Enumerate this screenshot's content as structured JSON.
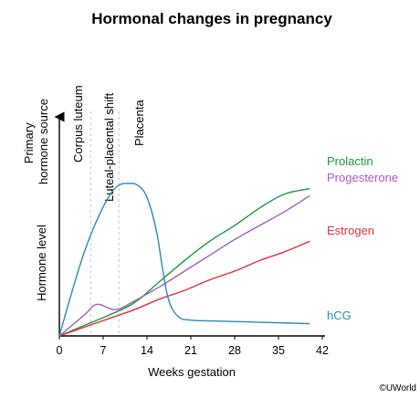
{
  "chart_data": {
    "type": "line",
    "title": "Hormonal changes in pregnancy",
    "xlabel": "Weeks gestation",
    "ylabel": "Hormone level",
    "ylabel_top": [
      "Primary",
      "hormone source"
    ],
    "xticks": [
      0,
      7,
      14,
      21,
      28,
      35,
      42
    ],
    "xlim": [
      0,
      42
    ],
    "ylim": [
      0,
      100
    ],
    "grid": false,
    "phases": [
      {
        "label": "Corpus luteum",
        "boundary": 5
      },
      {
        "label": "Luteal-placental shift",
        "boundary": 9.5
      },
      {
        "label": "Placenta",
        "boundary": null
      }
    ],
    "series": [
      {
        "name": "Prolactin",
        "color": "#1a9a3a",
        "x": [
          0,
          4,
          8,
          12,
          16,
          20,
          24,
          28,
          32,
          36,
          40
        ],
        "y": [
          0,
          6,
          12,
          19,
          31,
          43,
          54,
          63,
          73,
          81,
          84
        ]
      },
      {
        "name": "Progesterone",
        "color": "#a060c0",
        "x": [
          0,
          4,
          6,
          9,
          12,
          16,
          20,
          24,
          28,
          32,
          36,
          40
        ],
        "y": [
          0,
          12,
          18,
          15,
          20,
          28,
          37,
          46,
          55,
          63,
          71,
          80
        ]
      },
      {
        "name": "Estrogen",
        "color": "#e0303a",
        "x": [
          0,
          4,
          8,
          12,
          16,
          20,
          24,
          28,
          32,
          36,
          40
        ],
        "y": [
          0,
          5,
          10,
          15,
          21,
          26,
          32,
          37,
          43,
          48,
          54
        ]
      },
      {
        "name": "hCG",
        "color": "#2a8abe",
        "x": [
          0,
          2,
          4,
          6,
          8,
          9.5,
          11,
          12.5,
          14,
          15.5,
          16.5,
          17.5,
          19,
          21,
          25,
          30,
          35,
          40
        ],
        "y": [
          0,
          25,
          48,
          66,
          80,
          86,
          87,
          86,
          79,
          60,
          38,
          20,
          11,
          9,
          8.5,
          8,
          7.5,
          7
        ]
      }
    ]
  },
  "credit": "©UWorld"
}
